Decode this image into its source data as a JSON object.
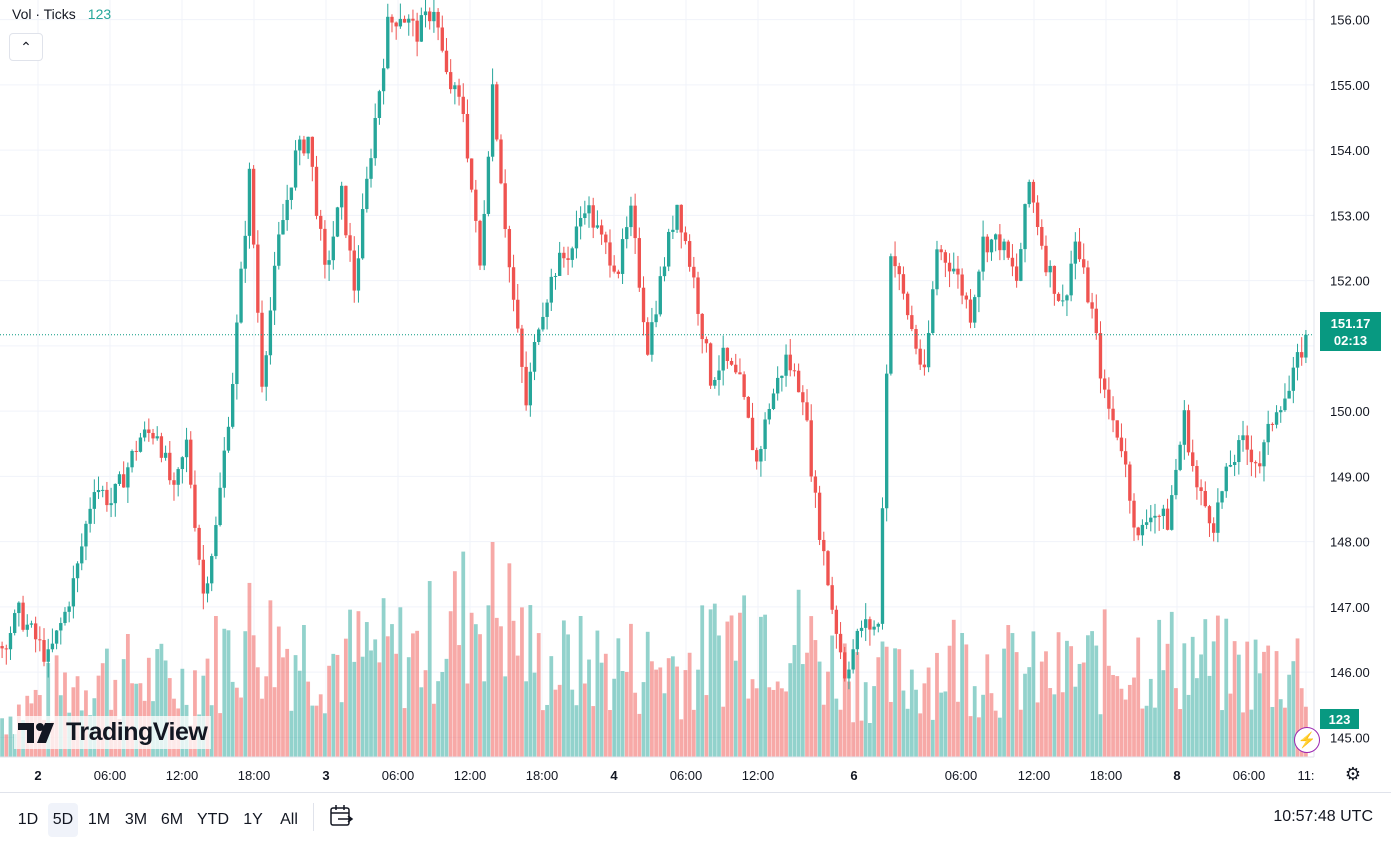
{
  "legend": {
    "name": "Vol · Ticks",
    "value": "123"
  },
  "price_label": {
    "price": "151.17",
    "countdown": "02:13"
  },
  "volume_label": "123",
  "logo_text": "TradingView",
  "range_buttons": [
    "1D",
    "5D",
    "1M",
    "3M",
    "6M",
    "YTD",
    "1Y",
    "All"
  ],
  "active_range": "5D",
  "clock": "10:57:48 UTC",
  "colors": {
    "up": "#26a69a",
    "down": "#ef5350",
    "price_tag": "#089981",
    "grid": "#f0f3fa"
  },
  "chart_data": {
    "type": "candlestick",
    "title": "",
    "y_ticks": [
      "156.00",
      "155.00",
      "154.00",
      "153.00",
      "152.00",
      "151.00",
      "150.00",
      "149.00",
      "148.00",
      "147.00",
      "146.00",
      "145.00"
    ],
    "x_ticks": [
      {
        "label": "2",
        "bold": true,
        "index": 0
      },
      {
        "label": "06:00",
        "bold": false,
        "index": 1
      },
      {
        "label": "12:00",
        "bold": false,
        "index": 2
      },
      {
        "label": "18:00",
        "bold": false,
        "index": 3
      },
      {
        "label": "3",
        "bold": true,
        "index": 4
      },
      {
        "label": "06:00",
        "bold": false,
        "index": 5
      },
      {
        "label": "12:00",
        "bold": false,
        "index": 6
      },
      {
        "label": "18:00",
        "bold": false,
        "index": 7
      },
      {
        "label": "4",
        "bold": true,
        "index": 8
      },
      {
        "label": "06:00",
        "bold": false,
        "index": 9
      },
      {
        "label": "12:00",
        "bold": false,
        "index": 10
      },
      {
        "label": "6",
        "bold": true,
        "index": 11
      },
      {
        "label": "06:00",
        "bold": false,
        "index": 12
      },
      {
        "label": "12:00",
        "bold": false,
        "index": 13
      },
      {
        "label": "18:00",
        "bold": false,
        "index": 14
      },
      {
        "label": "8",
        "bold": true,
        "index": 15
      },
      {
        "label": "06:00",
        "bold": false,
        "index": 16
      },
      {
        "label": "11:",
        "bold": false,
        "index": 17
      }
    ],
    "ylim": [
      144.7,
      156.3
    ],
    "last_price": 151.17,
    "price_path": [
      [
        0,
        146.4
      ],
      [
        4,
        146.9
      ],
      [
        8,
        146.5
      ],
      [
        11,
        146.2
      ],
      [
        15,
        146.9
      ],
      [
        18,
        147.6
      ],
      [
        22,
        148.9
      ],
      [
        26,
        148.6
      ],
      [
        29,
        149.0
      ],
      [
        33,
        149.6
      ],
      [
        37,
        149.7
      ],
      [
        41,
        148.7
      ],
      [
        44,
        149.5
      ],
      [
        48,
        147.2
      ],
      [
        51,
        148.2
      ],
      [
        55,
        150.5
      ],
      [
        59,
        153.6
      ],
      [
        62,
        150.5
      ],
      [
        66,
        152.6
      ],
      [
        70,
        153.9
      ],
      [
        73,
        154.2
      ],
      [
        77,
        152.1
      ],
      [
        81,
        153.3
      ],
      [
        84,
        151.9
      ],
      [
        88,
        154.0
      ],
      [
        92,
        155.9
      ],
      [
        95,
        156.1
      ],
      [
        99,
        155.8
      ],
      [
        103,
        156.2
      ],
      [
        106,
        155.1
      ],
      [
        110,
        154.6
      ],
      [
        114,
        152.2
      ],
      [
        117,
        155.0
      ],
      [
        121,
        152.2
      ],
      [
        125,
        150.1
      ],
      [
        128,
        151.4
      ],
      [
        132,
        152.2
      ],
      [
        136,
        152.5
      ],
      [
        139,
        153.2
      ],
      [
        143,
        152.6
      ],
      [
        147,
        152.2
      ],
      [
        150,
        153.0
      ],
      [
        154,
        151.0
      ],
      [
        158,
        152.3
      ],
      [
        161,
        153.2
      ],
      [
        165,
        152.0
      ],
      [
        169,
        150.5
      ],
      [
        172,
        150.8
      ],
      [
        176,
        150.4
      ],
      [
        180,
        149.2
      ],
      [
        183,
        150.1
      ],
      [
        187,
        150.8
      ],
      [
        191,
        150.3
      ],
      [
        194,
        148.6
      ],
      [
        198,
        147.0
      ],
      [
        201,
        146.0
      ],
      [
        205,
        146.7
      ],
      [
        209,
        146.7
      ],
      [
        212,
        152.5
      ],
      [
        216,
        151.5
      ],
      [
        220,
        150.5
      ],
      [
        223,
        152.5
      ],
      [
        227,
        152.2
      ],
      [
        231,
        151.5
      ],
      [
        234,
        152.6
      ],
      [
        238,
        152.6
      ],
      [
        242,
        152.0
      ],
      [
        245,
        153.5
      ],
      [
        249,
        152.3
      ],
      [
        253,
        151.6
      ],
      [
        256,
        152.6
      ],
      [
        260,
        151.5
      ],
      [
        263,
        150.2
      ],
      [
        267,
        149.5
      ],
      [
        271,
        148.0
      ],
      [
        274,
        148.5
      ],
      [
        278,
        148.3
      ],
      [
        282,
        149.9
      ],
      [
        285,
        148.8
      ],
      [
        289,
        148.3
      ],
      [
        293,
        149.2
      ],
      [
        296,
        149.5
      ],
      [
        300,
        149.2
      ],
      [
        304,
        150.1
      ],
      [
        307,
        150.3
      ],
      [
        311,
        151.17
      ]
    ],
    "volume_path": [
      [
        0,
        30
      ],
      [
        22,
        65
      ],
      [
        44,
        55
      ],
      [
        59,
        95
      ],
      [
        77,
        75
      ],
      [
        99,
        80
      ],
      [
        117,
        125
      ],
      [
        128,
        70
      ],
      [
        147,
        70
      ],
      [
        165,
        70
      ],
      [
        180,
        110
      ],
      [
        198,
        70
      ],
      [
        212,
        55
      ],
      [
        227,
        75
      ],
      [
        249,
        60
      ],
      [
        267,
        75
      ],
      [
        282,
        75
      ],
      [
        296,
        65
      ],
      [
        311,
        70
      ]
    ],
    "volume_max": 140
  }
}
